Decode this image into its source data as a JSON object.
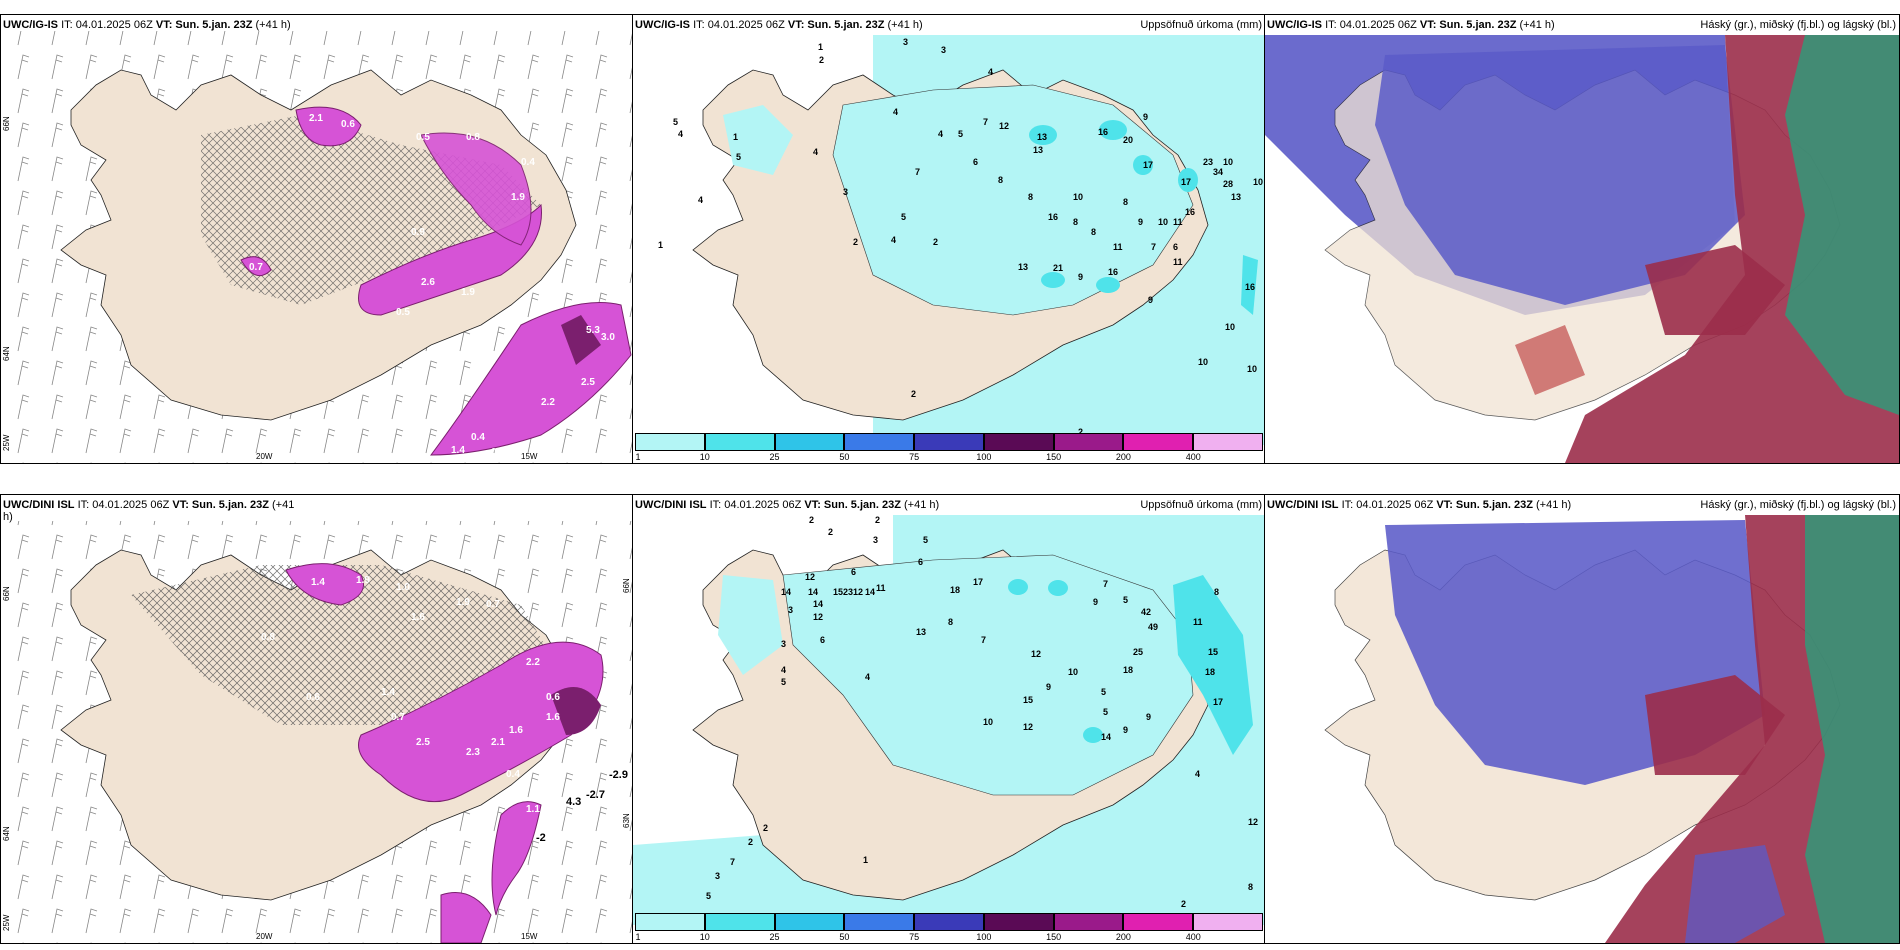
{
  "colors": {
    "land": "#f1e3d3",
    "precip_light": "#b3f5f5",
    "precip_mid": "#4fe3ea",
    "magenta": "#d653d6",
    "dark_magenta": "#7b1f6e",
    "blue_cloud": "#5b5bc8",
    "red_cloud": "#9b2d4a",
    "green_cloud": "#2a9d7a"
  },
  "panels": [
    {
      "id": "p1",
      "title_model": "UWC/IG-IS",
      "title_it": "IT: 04.01.2025 06Z",
      "title_vt": "VT: Sun. 5.jan. 23Z",
      "title_lead": "(+41 h)",
      "subtitle": ""
    },
    {
      "id": "p2",
      "title_model": "UWC/IG-IS",
      "title_it": "IT: 04.01.2025 06Z",
      "title_vt": "VT: Sun. 5.jan. 23Z",
      "title_lead": "(+41 h)",
      "subtitle": "Uppsöfnuð úrkoma (mm)"
    },
    {
      "id": "p3",
      "title_model": "UWC/IG-IS",
      "title_it": "IT: 04.01.2025 06Z",
      "title_vt": "VT: Sun. 5.jan. 23Z",
      "title_lead": "(+41 h)",
      "subtitle": "Háský (gr.), miðský (fj.bl.) og lágský (bl.)"
    },
    {
      "id": "p4",
      "title_model": "UWC/DINI ISL",
      "title_it": "IT: 04.01.2025 06Z",
      "title_vt": "VT: Sun. 5.jan. 23Z",
      "title_lead": "(+41",
      "title_lead2": "h)",
      "subtitle": ""
    },
    {
      "id": "p5",
      "title_model": "UWC/DINI ISL",
      "title_it": "IT: 04.01.2025 06Z",
      "title_vt": "VT: Sun. 5.jan. 23Z",
      "title_lead": "(+41 h)",
      "subtitle": "Uppsöfnuð úrkoma (mm)"
    },
    {
      "id": "p6",
      "title_model": "UWC/DINI ISL",
      "title_it": "IT: 04.01.2025 06Z",
      "title_vt": "VT: Sun. 5.jan. 23Z",
      "title_lead": "(+41 h)",
      "subtitle": "Háský (gr.), miðský (fj.bl.) og lágský (bl.)"
    }
  ],
  "axes": {
    "lat66": "66N",
    "lat64": "64N",
    "lat63": "63N",
    "lon20": "20W",
    "lon15": "15W",
    "lon25": "25W"
  },
  "colorbar": {
    "ticks": [
      "1",
      "10",
      "25",
      "50",
      "75",
      "100",
      "150",
      "200",
      "400"
    ],
    "colors": [
      "#b3f5f5",
      "#4fe3ea",
      "#2fc4e8",
      "#3a7ae8",
      "#3a3ab8",
      "#5a0a55",
      "#9a1a8a",
      "#e020b0",
      "#f0b0f0"
    ]
  },
  "p1_labels": [
    "2.1",
    "0.6",
    "0.5",
    "0.8",
    "0.4",
    "1.9",
    "2.6",
    "1.9",
    "0.5",
    "0.9",
    "0.7",
    "2.2",
    "0.4",
    "2.5",
    "3.0",
    "5.3",
    "1.4",
    "0.2"
  ],
  "p2_labels": [
    "1",
    "2",
    "3",
    "3",
    "4",
    "5",
    "4",
    "1",
    "5",
    "4",
    "4",
    "4",
    "5",
    "6",
    "7",
    "12",
    "13",
    "13",
    "16",
    "20",
    "17",
    "17",
    "16",
    "23",
    "34",
    "28",
    "13",
    "10",
    "10",
    "8",
    "8",
    "8",
    "8",
    "8",
    "9",
    "9",
    "6",
    "7",
    "7",
    "11",
    "10",
    "11",
    "11",
    "16",
    "16",
    "13",
    "21",
    "9",
    "9",
    "4",
    "1",
    "2",
    "3",
    "4",
    "5",
    "2",
    "10",
    "10",
    "10",
    "10",
    "16",
    "2",
    "2"
  ],
  "p4_labels": [
    "1.4",
    "1.9",
    "1.0",
    "1.9",
    "0.7",
    "1.6",
    "0.8",
    "0.6",
    "1.4",
    "2.5",
    "2.3",
    "2.1",
    "0.4",
    "1.6",
    "3.5",
    "1.6",
    "1.1",
    "0.7",
    "2.2",
    "0.6",
    "1.6"
  ],
  "p4_big_labels": [
    "-2.9",
    "-2.7",
    "4.3",
    "-2"
  ],
  "p5_labels": [
    "2",
    "2",
    "2",
    "3",
    "5",
    "6",
    "11",
    "6",
    "12",
    "14",
    "14",
    "14",
    "15",
    "23",
    "12",
    "14",
    "12",
    "18",
    "17",
    "42",
    "49",
    "25",
    "18",
    "15",
    "18",
    "17",
    "11",
    "8",
    "7",
    "5",
    "9",
    "13",
    "8",
    "3",
    "4",
    "5",
    "4",
    "6",
    "3",
    "7",
    "10",
    "9",
    "12",
    "9",
    "14",
    "12",
    "5",
    "15",
    "10",
    "4",
    "9",
    "5",
    "3",
    "7",
    "5",
    "2",
    "1",
    "12",
    "8",
    "2",
    "2"
  ]
}
